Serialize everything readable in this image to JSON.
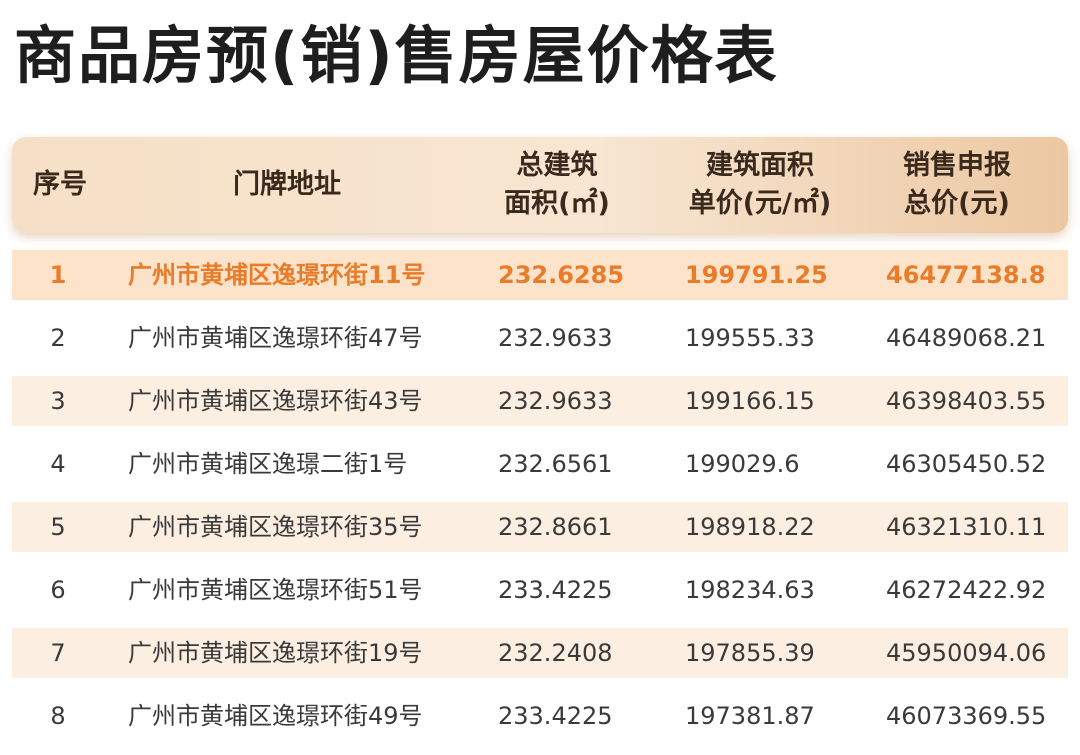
{
  "title": "商品房预(销)售房屋价格表",
  "headers": {
    "seq": "序号",
    "address": "门牌地址",
    "area": "总建筑\n面积(㎡)",
    "unit_price": "建筑面积\n单价(元/㎡)",
    "total_price": "销售申报\n总价(元)"
  },
  "rows": [
    {
      "seq": "1",
      "address": "广州市黄埔区逸璟环街11号",
      "area": "232.6285",
      "unit_price": "199791.25",
      "total_price": "46477138.8"
    },
    {
      "seq": "2",
      "address": "广州市黄埔区逸璟环街47号",
      "area": "232.9633",
      "unit_price": "199555.33",
      "total_price": "46489068.21"
    },
    {
      "seq": "3",
      "address": "广州市黄埔区逸璟环街43号",
      "area": "232.9633",
      "unit_price": "199166.15",
      "total_price": "46398403.55"
    },
    {
      "seq": "4",
      "address": "广州市黄埔区逸璟二街1号",
      "area": "232.6561",
      "unit_price": "199029.6",
      "total_price": "46305450.52"
    },
    {
      "seq": "5",
      "address": "广州市黄埔区逸璟环街35号",
      "area": "232.8661",
      "unit_price": "198918.22",
      "total_price": "46321310.11"
    },
    {
      "seq": "6",
      "address": "广州市黄埔区逸璟环街51号",
      "area": "233.4225",
      "unit_price": "198234.63",
      "total_price": "46272422.92"
    },
    {
      "seq": "7",
      "address": "广州市黄埔区逸璟环街19号",
      "area": "232.2408",
      "unit_price": "197855.39",
      "total_price": "45950094.06"
    },
    {
      "seq": "8",
      "address": "广州市黄埔区逸璟环街49号",
      "area": "233.4225",
      "unit_price": "197381.87",
      "total_price": "46073369.55"
    }
  ],
  "colors": {
    "highlight_text": "#e87c2a",
    "highlight_row": "#fde3ca",
    "shaded_row": "#fcefe2",
    "header_bg": "#f6dfc6"
  }
}
